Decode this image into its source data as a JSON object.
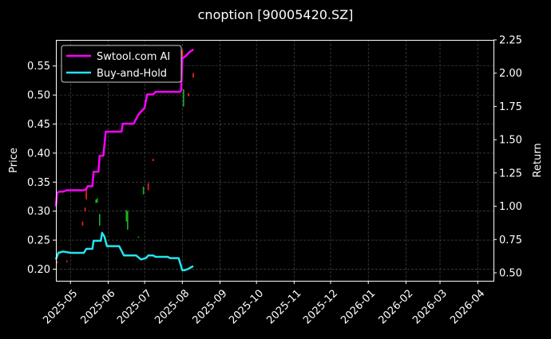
{
  "chart_data": {
    "type": "line",
    "title": "cnoption [90005420.SZ]",
    "xlabel": "",
    "ylabel": "Price",
    "y2label": "Return",
    "background": "#000000",
    "grid": true,
    "legend_position": "top-left",
    "xlim": [
      "2025-04-19",
      "2026-04-14"
    ],
    "ylim": [
      0.18,
      0.595
    ],
    "y2lim": [
      0.44,
      2.25
    ],
    "x_ticks": [
      "2025-05",
      "2025-06",
      "2025-07",
      "2025-08",
      "2025-09",
      "2025-10",
      "2025-11",
      "2025-12",
      "2026-01",
      "2026-02",
      "2026-03",
      "2026-04"
    ],
    "x_tick_dates": [
      "2025-05-01",
      "2025-06-01",
      "2025-07-01",
      "2025-08-01",
      "2025-09-01",
      "2025-10-01",
      "2025-11-01",
      "2025-12-01",
      "2026-01-01",
      "2026-02-01",
      "2026-03-01",
      "2026-04-01"
    ],
    "y_ticks": [
      0.2,
      0.25,
      0.3,
      0.35,
      0.4,
      0.45,
      0.5,
      0.55
    ],
    "y_tick_labels": [
      "0.20",
      "0.25",
      "0.30",
      "0.35",
      "0.40",
      "0.45",
      "0.50",
      "0.55"
    ],
    "y2_ticks": [
      0.5,
      0.75,
      1.0,
      1.25,
      1.5,
      1.75,
      2.0,
      2.25
    ],
    "y2_tick_labels": [
      "0.50",
      "0.75",
      "1.00",
      "1.25",
      "1.50",
      "1.75",
      "2.00",
      "2.25"
    ],
    "series": [
      {
        "name": "Swtool.com AI",
        "axis": "right",
        "color": "#ff00ff",
        "points": [
          [
            "2025-04-19",
            1.0
          ],
          [
            "2025-04-20",
            1.1
          ],
          [
            "2025-04-22",
            1.11
          ],
          [
            "2025-04-25",
            1.11
          ],
          [
            "2025-04-28",
            1.12
          ],
          [
            "2025-05-05",
            1.12
          ],
          [
            "2025-05-12",
            1.12
          ],
          [
            "2025-05-14",
            1.13
          ],
          [
            "2025-05-15",
            1.15
          ],
          [
            "2025-05-19",
            1.15
          ],
          [
            "2025-05-20",
            1.26
          ],
          [
            "2025-05-24",
            1.26
          ],
          [
            "2025-05-25",
            1.38
          ],
          [
            "2025-05-28",
            1.38
          ],
          [
            "2025-05-30",
            1.56
          ],
          [
            "2025-06-12",
            1.56
          ],
          [
            "2025-06-13",
            1.62
          ],
          [
            "2025-06-22",
            1.62
          ],
          [
            "2025-06-26",
            1.69
          ],
          [
            "2025-06-29",
            1.72
          ],
          [
            "2025-07-01",
            1.74
          ],
          [
            "2025-07-03",
            1.84
          ],
          [
            "2025-07-08",
            1.84
          ],
          [
            "2025-07-10",
            1.86
          ],
          [
            "2025-07-30",
            1.86
          ],
          [
            "2025-07-31",
            1.87
          ],
          [
            "2025-08-01",
            2.11
          ],
          [
            "2025-08-04",
            2.13
          ],
          [
            "2025-08-07",
            2.16
          ],
          [
            "2025-08-09",
            2.17
          ],
          [
            "2025-08-10",
            2.18
          ]
        ]
      },
      {
        "name": "Buy-and-Hold",
        "axis": "right",
        "color": "#22e5f0",
        "points": [
          [
            "2025-04-19",
            0.6
          ],
          [
            "2025-04-21",
            0.65
          ],
          [
            "2025-04-25",
            0.66
          ],
          [
            "2025-05-01",
            0.65
          ],
          [
            "2025-05-12",
            0.65
          ],
          [
            "2025-05-14",
            0.68
          ],
          [
            "2025-05-19",
            0.68
          ],
          [
            "2025-05-20",
            0.74
          ],
          [
            "2025-05-26",
            0.74
          ],
          [
            "2025-05-27",
            0.8
          ],
          [
            "2025-05-29",
            0.77
          ],
          [
            "2025-05-31",
            0.7
          ],
          [
            "2025-06-10",
            0.7
          ],
          [
            "2025-06-14",
            0.63
          ],
          [
            "2025-06-24",
            0.63
          ],
          [
            "2025-06-28",
            0.6
          ],
          [
            "2025-07-02",
            0.61
          ],
          [
            "2025-07-04",
            0.63
          ],
          [
            "2025-07-08",
            0.63
          ],
          [
            "2025-07-10",
            0.62
          ],
          [
            "2025-07-20",
            0.62
          ],
          [
            "2025-07-22",
            0.61
          ],
          [
            "2025-07-29",
            0.61
          ],
          [
            "2025-08-01",
            0.52
          ],
          [
            "2025-08-03",
            0.52
          ],
          [
            "2025-08-06",
            0.53
          ],
          [
            "2025-08-10",
            0.55
          ]
        ]
      }
    ],
    "price_candles": [
      {
        "date": "2025-04-20",
        "open": 0.21,
        "close": 0.214,
        "color": "#ff2020"
      },
      {
        "date": "2025-04-28",
        "open": 0.212,
        "close": 0.215,
        "color": "#ff2020"
      },
      {
        "date": "2025-05-11",
        "open": 0.275,
        "close": 0.282,
        "color": "#ff2020"
      },
      {
        "date": "2025-05-13",
        "open": 0.3,
        "close": 0.306,
        "color": "#ff2020"
      },
      {
        "date": "2025-05-14",
        "open": 0.32,
        "close": 0.338,
        "color": "#ff2020"
      },
      {
        "date": "2025-05-22",
        "open": 0.314,
        "close": 0.32,
        "color": "#1fb01f"
      },
      {
        "date": "2025-05-23",
        "open": 0.315,
        "close": 0.322,
        "color": "#1fb01f"
      },
      {
        "date": "2025-05-25",
        "open": 0.275,
        "close": 0.295,
        "color": "#1fb01f"
      },
      {
        "date": "2025-06-16",
        "open": 0.282,
        "close": 0.302,
        "color": "#1fb01f"
      },
      {
        "date": "2025-06-17",
        "open": 0.268,
        "close": 0.3,
        "color": "#1fb01f"
      },
      {
        "date": "2025-06-26",
        "open": 0.254,
        "close": 0.256,
        "color": "#1fb01f"
      },
      {
        "date": "2025-06-30",
        "open": 0.329,
        "close": 0.342,
        "color": "#1fb01f"
      },
      {
        "date": "2025-07-04",
        "open": 0.336,
        "close": 0.348,
        "color": "#ff2020"
      },
      {
        "date": "2025-07-08",
        "open": 0.386,
        "close": 0.39,
        "color": "#ff2020"
      },
      {
        "date": "2025-07-30",
        "open": 0.536,
        "close": 0.55,
        "color": "#1fb01f"
      },
      {
        "date": "2025-08-01",
        "open": 0.545,
        "close": 0.578,
        "color": "#ff2020"
      },
      {
        "date": "2025-08-02",
        "open": 0.48,
        "close": 0.51,
        "color": "#1fb01f"
      },
      {
        "date": "2025-08-06",
        "open": 0.498,
        "close": 0.503,
        "color": "#ff2020"
      },
      {
        "date": "2025-08-10",
        "open": 0.53,
        "close": 0.538,
        "color": "#ff2020"
      }
    ]
  }
}
